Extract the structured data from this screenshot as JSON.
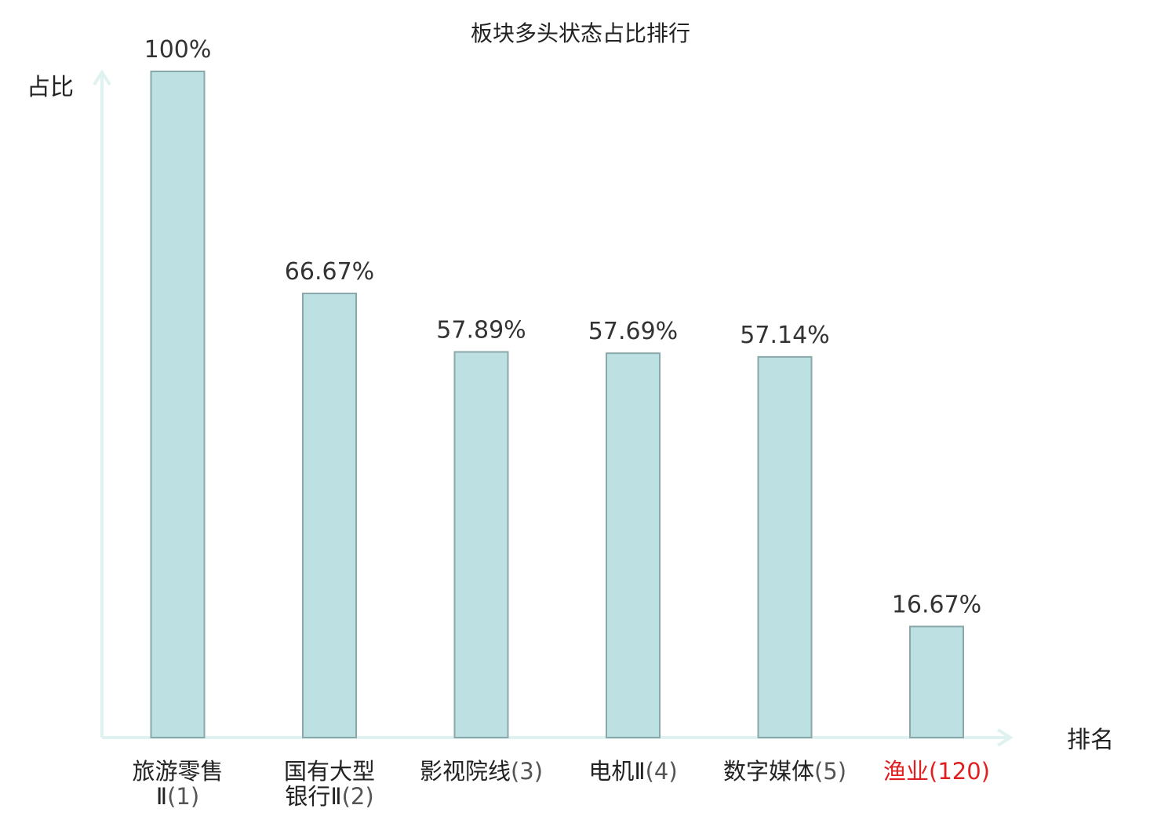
{
  "chart_data": {
    "type": "bar",
    "title": "板块多头状态占比排行",
    "ylabel": "占比",
    "xlabel": "排名",
    "ylim": [
      0,
      100
    ],
    "grid": false,
    "categories": [
      {
        "lines": [
          "旅游零售",
          "Ⅱ"
        ],
        "rank": "(1)",
        "highlight": false
      },
      {
        "lines": [
          "国有大型",
          "银行Ⅱ"
        ],
        "rank": "(2)",
        "highlight": false
      },
      {
        "lines": [
          "影视院线"
        ],
        "rank": "(3)",
        "highlight": false
      },
      {
        "lines": [
          "电机Ⅱ"
        ],
        "rank": "(4)",
        "highlight": false
      },
      {
        "lines": [
          "数字媒体"
        ],
        "rank": "(5)",
        "highlight": false
      },
      {
        "lines": [
          "渔业"
        ],
        "rank": "(120)",
        "highlight": true
      }
    ],
    "values": [
      100,
      66.67,
      57.89,
      57.69,
      57.14,
      16.67
    ],
    "value_labels": [
      "100%",
      "66.67%",
      "57.89%",
      "57.69%",
      "57.14%",
      "16.67%"
    ]
  },
  "colors": {
    "bar_fill": "#bde0e2",
    "bar_stroke": "#8aa7aa",
    "axis": "#e0f2ef",
    "highlight": "#e02020",
    "text": "#222222"
  }
}
